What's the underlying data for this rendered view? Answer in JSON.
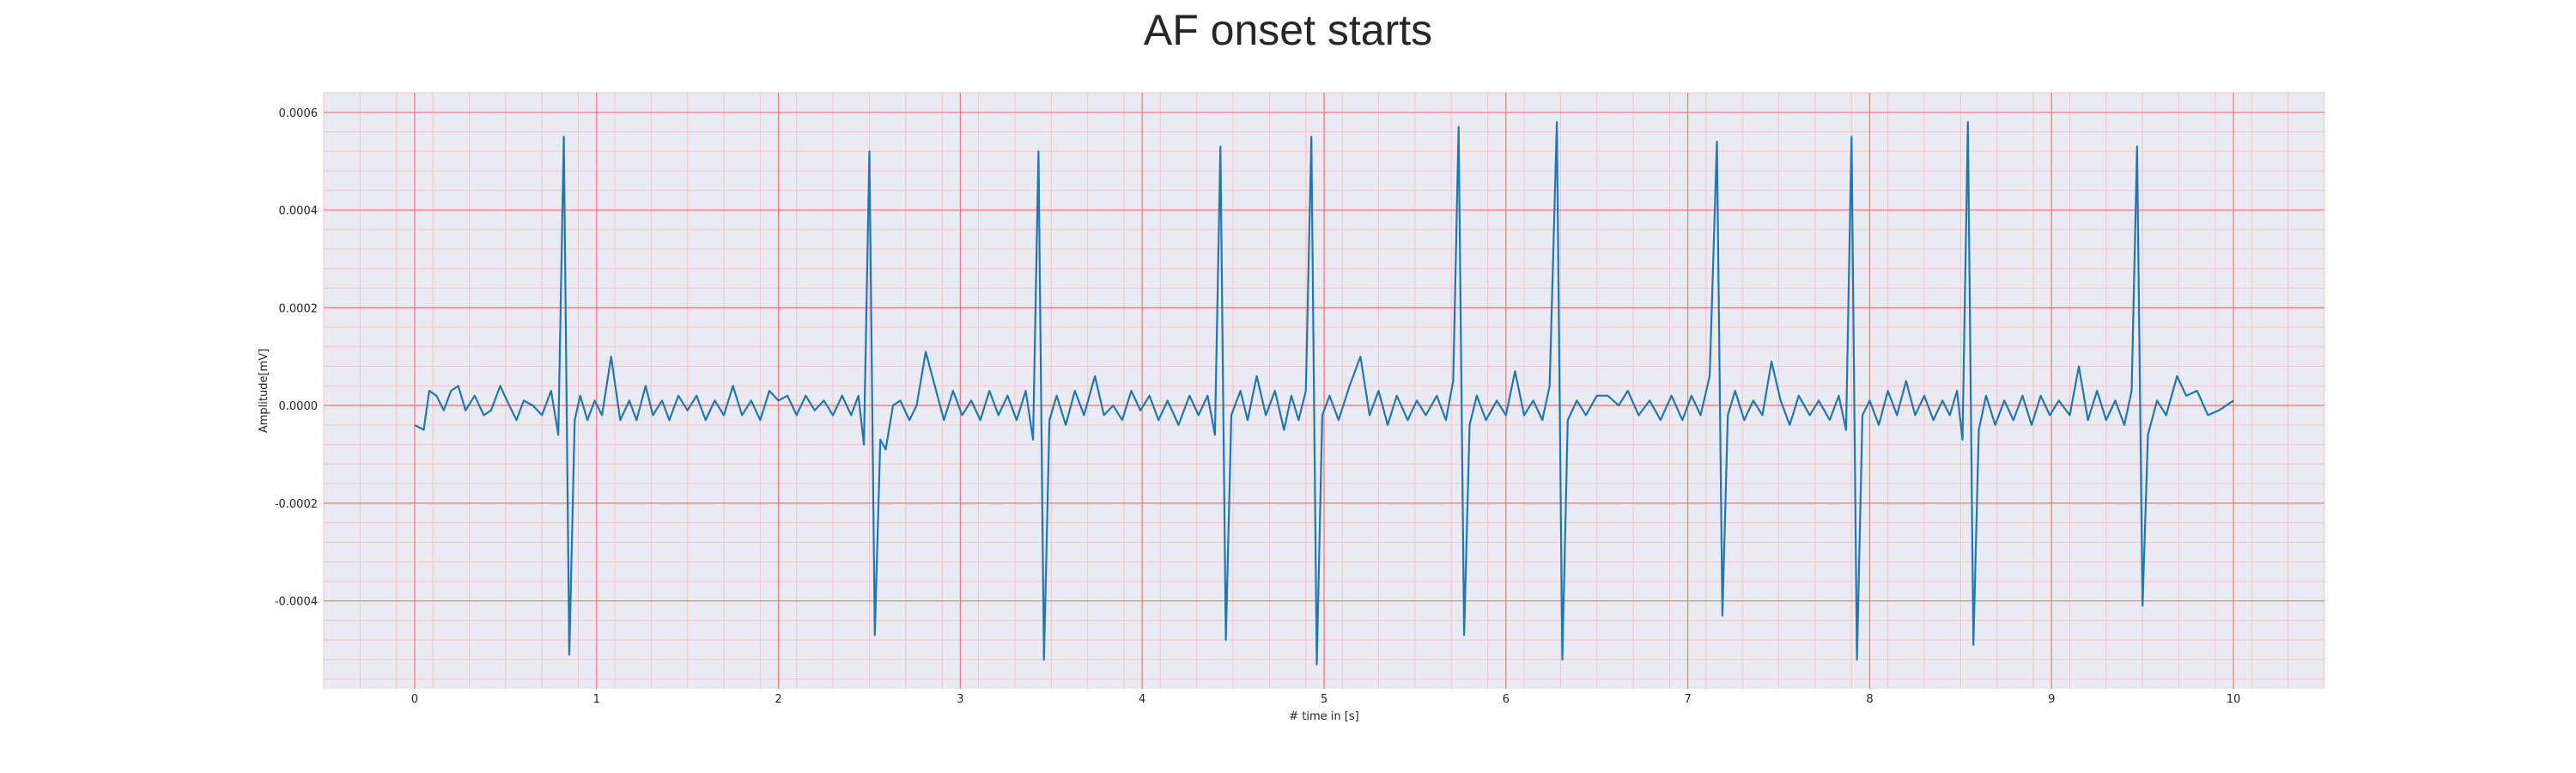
{
  "chart_data": {
    "type": "line",
    "title": "AF onset starts",
    "xlabel": "# time in [s]",
    "ylabel": "Amplitude[mV]",
    "xlim": [
      -0.5,
      10.5
    ],
    "ylim": [
      -0.00058,
      0.00064
    ],
    "xticks": [
      0,
      1,
      2,
      3,
      4,
      5,
      6,
      7,
      8,
      9,
      10
    ],
    "xtick_labels": [
      "0",
      "1",
      "2",
      "3",
      "4",
      "5",
      "6",
      "7",
      "8",
      "9",
      "10"
    ],
    "yticks": [
      -0.0004,
      -0.0002,
      0.0,
      0.0002,
      0.0004,
      0.0006
    ],
    "ytick_labels": [
      "-0.0004",
      "-0.0002",
      "0.0000",
      "0.0002",
      "0.0004",
      "0.0006"
    ],
    "grid": true,
    "colors": {
      "plot_background": "#eaeaf2",
      "major_grid": "#f08080",
      "minor_grid": "#f6c4c4",
      "line": "#1f77b4"
    },
    "series": [
      {
        "values": [
          [
            0.0,
            -4e-05
          ],
          [
            0.05,
            -5e-05
          ],
          [
            0.08,
            3e-05
          ],
          [
            0.12,
            2e-05
          ],
          [
            0.16,
            -1e-05
          ],
          [
            0.2,
            3e-05
          ],
          [
            0.24,
            4e-05
          ],
          [
            0.28,
            -1e-05
          ],
          [
            0.33,
            2e-05
          ],
          [
            0.38,
            -2e-05
          ],
          [
            0.42,
            -1e-05
          ],
          [
            0.47,
            4e-05
          ],
          [
            0.52,
            0.0
          ],
          [
            0.56,
            -3e-05
          ],
          [
            0.6,
            1e-05
          ],
          [
            0.65,
            0.0
          ],
          [
            0.7,
            -2e-05
          ],
          [
            0.75,
            3e-05
          ],
          [
            0.79,
            -6e-05
          ],
          [
            0.82,
            0.00055
          ],
          [
            0.85,
            -0.00051
          ],
          [
            0.88,
            -3e-05
          ],
          [
            0.91,
            2e-05
          ],
          [
            0.95,
            -3e-05
          ],
          [
            0.99,
            1e-05
          ],
          [
            1.03,
            -2e-05
          ],
          [
            1.08,
            0.0001
          ],
          [
            1.13,
            -3e-05
          ],
          [
            1.18,
            1e-05
          ],
          [
            1.22,
            -3e-05
          ],
          [
            1.27,
            4e-05
          ],
          [
            1.31,
            -2e-05
          ],
          [
            1.36,
            1e-05
          ],
          [
            1.4,
            -3e-05
          ],
          [
            1.45,
            2e-05
          ],
          [
            1.5,
            -1e-05
          ],
          [
            1.55,
            2e-05
          ],
          [
            1.6,
            -3e-05
          ],
          [
            1.65,
            1e-05
          ],
          [
            1.7,
            -2e-05
          ],
          [
            1.75,
            4e-05
          ],
          [
            1.8,
            -2e-05
          ],
          [
            1.85,
            1e-05
          ],
          [
            1.9,
            -3e-05
          ],
          [
            1.95,
            3e-05
          ],
          [
            2.0,
            1e-05
          ],
          [
            2.05,
            2e-05
          ],
          [
            2.1,
            -2e-05
          ],
          [
            2.15,
            2e-05
          ],
          [
            2.2,
            -1e-05
          ],
          [
            2.25,
            1e-05
          ],
          [
            2.3,
            -2e-05
          ],
          [
            2.35,
            2e-05
          ],
          [
            2.4,
            -2e-05
          ],
          [
            2.44,
            2e-05
          ],
          [
            2.47,
            -8e-05
          ],
          [
            2.5,
            0.00052
          ],
          [
            2.53,
            -0.00047
          ],
          [
            2.56,
            -7e-05
          ],
          [
            2.59,
            -9e-05
          ],
          [
            2.63,
            0.0
          ],
          [
            2.67,
            1e-05
          ],
          [
            2.72,
            -3e-05
          ],
          [
            2.76,
            0.0
          ],
          [
            2.81,
            0.00011
          ],
          [
            2.86,
            4e-05
          ],
          [
            2.91,
            -3e-05
          ],
          [
            2.96,
            3e-05
          ],
          [
            3.01,
            -2e-05
          ],
          [
            3.06,
            1e-05
          ],
          [
            3.11,
            -3e-05
          ],
          [
            3.16,
            3e-05
          ],
          [
            3.21,
            -2e-05
          ],
          [
            3.26,
            2e-05
          ],
          [
            3.31,
            -3e-05
          ],
          [
            3.36,
            3e-05
          ],
          [
            3.4,
            -7e-05
          ],
          [
            3.43,
            0.00052
          ],
          [
            3.46,
            -0.00052
          ],
          [
            3.49,
            -3e-05
          ],
          [
            3.53,
            2e-05
          ],
          [
            3.58,
            -4e-05
          ],
          [
            3.63,
            3e-05
          ],
          [
            3.68,
            -2e-05
          ],
          [
            3.74,
            6e-05
          ],
          [
            3.79,
            -2e-05
          ],
          [
            3.84,
            0.0
          ],
          [
            3.89,
            -3e-05
          ],
          [
            3.94,
            3e-05
          ],
          [
            3.99,
            -1e-05
          ],
          [
            4.04,
            2e-05
          ],
          [
            4.09,
            -3e-05
          ],
          [
            4.14,
            1e-05
          ],
          [
            4.2,
            -4e-05
          ],
          [
            4.26,
            2e-05
          ],
          [
            4.31,
            -2e-05
          ],
          [
            4.36,
            2e-05
          ],
          [
            4.4,
            -6e-05
          ],
          [
            4.43,
            0.00053
          ],
          [
            4.46,
            -0.00048
          ],
          [
            4.49,
            -2e-05
          ],
          [
            4.54,
            3e-05
          ],
          [
            4.58,
            -3e-05
          ],
          [
            4.63,
            6e-05
          ],
          [
            4.68,
            -2e-05
          ],
          [
            4.73,
            3e-05
          ],
          [
            4.78,
            -5e-05
          ],
          [
            4.82,
            2e-05
          ],
          [
            4.86,
            -3e-05
          ],
          [
            4.9,
            3e-05
          ],
          [
            4.93,
            0.00055
          ],
          [
            4.96,
            -0.00053
          ],
          [
            4.99,
            -2e-05
          ],
          [
            5.03,
            2e-05
          ],
          [
            5.08,
            -3e-05
          ],
          [
            5.14,
            4e-05
          ],
          [
            5.2,
            0.0001
          ],
          [
            5.25,
            -2e-05
          ],
          [
            5.3,
            3e-05
          ],
          [
            5.35,
            -4e-05
          ],
          [
            5.4,
            2e-05
          ],
          [
            5.46,
            -3e-05
          ],
          [
            5.51,
            1e-05
          ],
          [
            5.56,
            -2e-05
          ],
          [
            5.62,
            2e-05
          ],
          [
            5.67,
            -3e-05
          ],
          [
            5.71,
            5e-05
          ],
          [
            5.74,
            0.00057
          ],
          [
            5.77,
            -0.00047
          ],
          [
            5.8,
            -4e-05
          ],
          [
            5.84,
            2e-05
          ],
          [
            5.89,
            -3e-05
          ],
          [
            5.95,
            1e-05
          ],
          [
            6.0,
            -2e-05
          ],
          [
            6.05,
            7e-05
          ],
          [
            6.1,
            -2e-05
          ],
          [
            6.15,
            1e-05
          ],
          [
            6.2,
            -3e-05
          ],
          [
            6.24,
            4e-05
          ],
          [
            6.28,
            0.00058
          ],
          [
            6.31,
            -0.00052
          ],
          [
            6.34,
            -3e-05
          ],
          [
            6.39,
            1e-05
          ],
          [
            6.44,
            -2e-05
          ],
          [
            6.5,
            2e-05
          ],
          [
            6.56,
            2e-05
          ],
          [
            6.62,
            0.0
          ],
          [
            6.67,
            3e-05
          ],
          [
            6.73,
            -2e-05
          ],
          [
            6.79,
            1e-05
          ],
          [
            6.85,
            -3e-05
          ],
          [
            6.91,
            2e-05
          ],
          [
            6.97,
            -3e-05
          ],
          [
            7.02,
            2e-05
          ],
          [
            7.07,
            -2e-05
          ],
          [
            7.12,
            6e-05
          ],
          [
            7.16,
            0.00054
          ],
          [
            7.19,
            -0.00043
          ],
          [
            7.22,
            -2e-05
          ],
          [
            7.26,
            3e-05
          ],
          [
            7.31,
            -3e-05
          ],
          [
            7.36,
            1e-05
          ],
          [
            7.41,
            -2e-05
          ],
          [
            7.46,
            9e-05
          ],
          [
            7.51,
            1e-05
          ],
          [
            7.56,
            -4e-05
          ],
          [
            7.61,
            2e-05
          ],
          [
            7.67,
            -2e-05
          ],
          [
            7.72,
            1e-05
          ],
          [
            7.78,
            -3e-05
          ],
          [
            7.83,
            2e-05
          ],
          [
            7.87,
            -5e-05
          ],
          [
            7.9,
            0.00055
          ],
          [
            7.93,
            -0.00052
          ],
          [
            7.96,
            -2e-05
          ],
          [
            8.0,
            1e-05
          ],
          [
            8.05,
            -4e-05
          ],
          [
            8.1,
            3e-05
          ],
          [
            8.15,
            -2e-05
          ],
          [
            8.2,
            5e-05
          ],
          [
            8.25,
            -2e-05
          ],
          [
            8.3,
            2e-05
          ],
          [
            8.35,
            -3e-05
          ],
          [
            8.4,
            1e-05
          ],
          [
            8.44,
            -2e-05
          ],
          [
            8.48,
            3e-05
          ],
          [
            8.51,
            -7e-05
          ],
          [
            8.54,
            0.00058
          ],
          [
            8.57,
            -0.00049
          ],
          [
            8.6,
            -5e-05
          ],
          [
            8.64,
            2e-05
          ],
          [
            8.69,
            -4e-05
          ],
          [
            8.74,
            1e-05
          ],
          [
            8.79,
            -3e-05
          ],
          [
            8.84,
            2e-05
          ],
          [
            8.89,
            -4e-05
          ],
          [
            8.94,
            2e-05
          ],
          [
            8.99,
            -2e-05
          ],
          [
            9.04,
            1e-05
          ],
          [
            9.1,
            -2e-05
          ],
          [
            9.15,
            8e-05
          ],
          [
            9.2,
            -3e-05
          ],
          [
            9.25,
            3e-05
          ],
          [
            9.3,
            -3e-05
          ],
          [
            9.35,
            1e-05
          ],
          [
            9.4,
            -4e-05
          ],
          [
            9.44,
            3e-05
          ],
          [
            9.47,
            0.00053
          ],
          [
            9.5,
            -0.00041
          ],
          [
            9.53,
            -6e-05
          ],
          [
            9.58,
            1e-05
          ],
          [
            9.63,
            -2e-05
          ],
          [
            9.69,
            6e-05
          ],
          [
            9.74,
            2e-05
          ],
          [
            9.8,
            3e-05
          ],
          [
            9.86,
            -2e-05
          ],
          [
            9.92,
            -1e-05
          ],
          [
            9.96,
            0.0
          ],
          [
            10.0,
            1e-05
          ]
        ]
      }
    ]
  }
}
